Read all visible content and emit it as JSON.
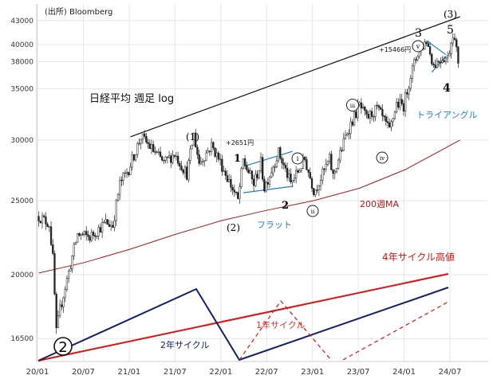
{
  "chart_data": {
    "type": "candlestick",
    "source": "(出所) Bloomberg",
    "title": "日経平均 週足 log",
    "y_scale": "log",
    "ylim": [
      15400,
      45200
    ],
    "x_ticks": [
      "20/01",
      "20/07",
      "21/01",
      "21/07",
      "22/01",
      "22/07",
      "23/01",
      "23/07",
      "24/01",
      "24/07"
    ],
    "y_ticks": [
      43000,
      40000,
      38000,
      35000,
      30000,
      25000,
      20000,
      16500
    ],
    "y_tick_labels": [
      "43000",
      "40000",
      "38000",
      "35000",
      "30000",
      "25000",
      "20000",
      "16500"
    ],
    "price_path": [
      [
        "2020-01-06",
        23850
      ],
      [
        "2020-02-17",
        23300
      ],
      [
        "2020-03-02",
        21000
      ],
      [
        "2020-03-16",
        16800
      ],
      [
        "2020-03-30",
        18000
      ],
      [
        "2020-04-27",
        19700
      ],
      [
        "2020-06-08",
        22600
      ],
      [
        "2020-07-27",
        22400
      ],
      [
        "2020-09-28",
        23400
      ],
      [
        "2020-10-26",
        23200
      ],
      [
        "2020-11-23",
        26300
      ],
      [
        "2020-12-28",
        27500
      ],
      [
        "2021-02-15",
        30300
      ],
      [
        "2021-03-15",
        29600
      ],
      [
        "2021-05-17",
        28000
      ],
      [
        "2021-06-28",
        28800
      ],
      [
        "2021-08-16",
        27100
      ],
      [
        "2021-09-13",
        30500
      ],
      [
        "2021-10-04",
        28000
      ],
      [
        "2021-11-22",
        29500
      ],
      [
        "2021-12-20",
        28400
      ],
      [
        "2022-01-24",
        26800
      ],
      [
        "2022-03-07",
        25000
      ],
      [
        "2022-03-28",
        28200
      ],
      [
        "2022-05-09",
        26300
      ],
      [
        "2022-06-06",
        28000
      ],
      [
        "2022-06-20",
        26000
      ],
      [
        "2022-08-15",
        28900
      ],
      [
        "2022-10-03",
        26300
      ],
      [
        "2022-11-28",
        28300
      ],
      [
        "2023-01-04",
        25700
      ],
      [
        "2023-03-06",
        28300
      ],
      [
        "2023-03-20",
        26900
      ],
      [
        "2023-05-15",
        30800
      ],
      [
        "2023-07-03",
        33300
      ],
      [
        "2023-07-31",
        32000
      ],
      [
        "2023-09-11",
        33000
      ],
      [
        "2023-10-30",
        30800
      ],
      [
        "2023-11-27",
        33500
      ],
      [
        "2023-12-25",
        33300
      ],
      [
        "2024-01-22",
        36500
      ],
      [
        "2024-02-19",
        39000
      ],
      [
        "2024-03-25",
        40500
      ],
      [
        "2024-04-22",
        37600
      ],
      [
        "2024-05-27",
        38500
      ],
      [
        "2024-06-17",
        38400
      ],
      [
        "2024-07-08",
        41500
      ],
      [
        "2024-07-29",
        38100
      ]
    ],
    "series": [
      {
        "name": "200週MA",
        "color": "#b01818",
        "values": [
          [
            "2020-01-06",
            20100
          ],
          [
            "2020-07-06",
            20750
          ],
          [
            "2021-01-04",
            21600
          ],
          [
            "2021-07-05",
            22600
          ],
          [
            "2022-01-03",
            23550
          ],
          [
            "2022-07-04",
            24300
          ],
          [
            "2023-01-02",
            25000
          ],
          [
            "2023-07-03",
            25950
          ],
          [
            "2024-01-01",
            27450
          ],
          [
            "2024-08-05",
            30000
          ]
        ]
      },
      {
        "name": "upper trendline",
        "color": "#111111",
        "values": [
          [
            "2021-01-04",
            30300
          ],
          [
            "2024-08-05",
            43500
          ]
        ]
      },
      {
        "name": "flat upper",
        "color": "#1f7fc8",
        "values": [
          [
            "2022-03-28",
            27700
          ],
          [
            "2022-10-10",
            29000
          ]
        ]
      },
      {
        "name": "flat lower",
        "color": "#1f7fc8",
        "values": [
          [
            "2022-03-28",
            25600
          ],
          [
            "2022-10-10",
            26100
          ]
        ]
      },
      {
        "name": "triangle upper",
        "color": "#1f7fc8",
        "values": [
          [
            "2024-03-25",
            40500
          ],
          [
            "2024-06-10",
            38800
          ]
        ]
      },
      {
        "name": "triangle lower",
        "color": "#1f7fc8",
        "values": [
          [
            "2024-04-15",
            36800
          ],
          [
            "2024-06-10",
            38600
          ]
        ]
      }
    ],
    "annotations": {
      "wave_1_big": "1",
      "wave_2_big": "2",
      "wave_3_big": "3",
      "wave_4_big": "4",
      "wave_5_big": "5",
      "paren_1": "(1)",
      "paren_2": "(2)",
      "paren_3": "(3)",
      "circ_i": "i",
      "circ_ii": "ii",
      "circ_iii": "iii",
      "circ_iv": "iv",
      "circ_v": "v",
      "circled_2": "2",
      "plus_2651": "+2651円",
      "plus_15466": "+15466円",
      "flat": "フラット",
      "triangle": "トライアングル",
      "ma200": "200週MA"
    },
    "cycles": {
      "four_year_label": "4年サイクル高値",
      "two_year_label": "2年サイクル",
      "one_year_label": "1年サイクル"
    }
  }
}
